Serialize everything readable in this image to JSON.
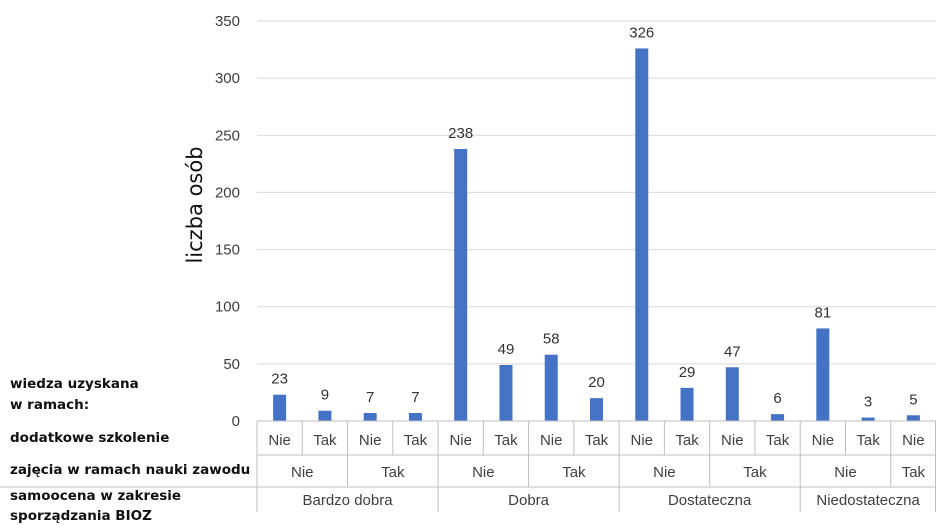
{
  "chart_data": {
    "type": "bar",
    "ylabel": "liczba osób",
    "ylim": [
      0,
      350
    ],
    "yticks": [
      "0",
      "50",
      "100",
      "150",
      "200",
      "250",
      "300",
      "350"
    ],
    "grid": true,
    "bar_color": "#4472c4",
    "values": [
      23,
      9,
      7,
      7,
      238,
      49,
      58,
      20,
      326,
      29,
      47,
      6,
      81,
      3,
      5
    ],
    "categories": [
      {
        "samoocena": "Bardzo dobra",
        "zajecia": "Nie",
        "szkolenie": "Nie"
      },
      {
        "samoocena": "Bardzo dobra",
        "zajecia": "Nie",
        "szkolenie": "Tak"
      },
      {
        "samoocena": "Bardzo dobra",
        "zajecia": "Tak",
        "szkolenie": "Nie"
      },
      {
        "samoocena": "Bardzo dobra",
        "zajecia": "Tak",
        "szkolenie": "Tak"
      },
      {
        "samoocena": "Dobra",
        "zajecia": "Nie",
        "szkolenie": "Nie"
      },
      {
        "samoocena": "Dobra",
        "zajecia": "Nie",
        "szkolenie": "Tak"
      },
      {
        "samoocena": "Dobra",
        "zajecia": "Tak",
        "szkolenie": "Nie"
      },
      {
        "samoocena": "Dobra",
        "zajecia": "Tak",
        "szkolenie": "Tak"
      },
      {
        "samoocena": "Dostateczna",
        "zajecia": "Nie",
        "szkolenie": "Nie"
      },
      {
        "samoocena": "Dostateczna",
        "zajecia": "Nie",
        "szkolenie": "Tak"
      },
      {
        "samoocena": "Dostateczna",
        "zajecia": "Tak",
        "szkolenie": "Nie"
      },
      {
        "samoocena": "Dostateczna",
        "zajecia": "Tak",
        "szkolenie": "Tak"
      },
      {
        "samoocena": "Niedostateczna",
        "zajecia": "Nie",
        "szkolenie": "Nie"
      },
      {
        "samoocena": "Niedostateczna",
        "zajecia": "Nie",
        "szkolenie": "Tak"
      },
      {
        "samoocena": "Niedostateczna",
        "zajecia": "Tak",
        "szkolenie": "Nie"
      }
    ],
    "row_labels": {
      "header": [
        "wiedza uzyskana",
        "w ramach:"
      ],
      "szkolenie": "dodatkowe szkolenie",
      "zajecia": "zajęcia w ramach nauki zawodu",
      "samoocena": [
        "samoocena w zakresie",
        "sporządzania BIOZ"
      ]
    }
  }
}
